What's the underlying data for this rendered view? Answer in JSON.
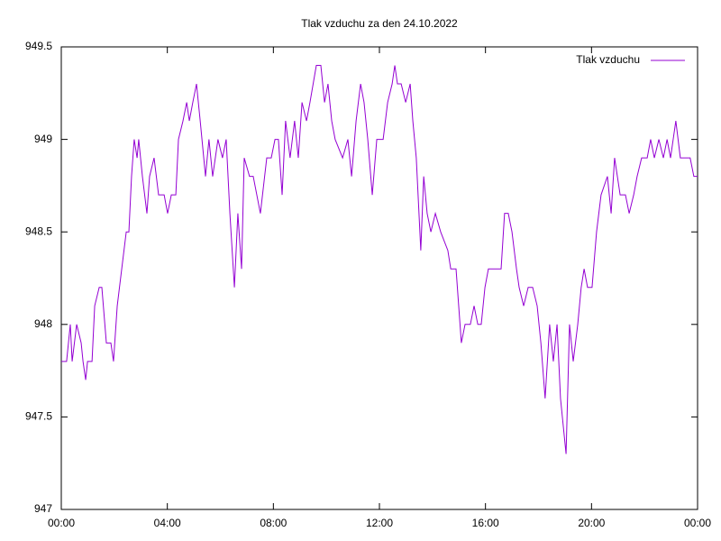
{
  "chart_data": {
    "type": "line",
    "title": "Tlak vzduchu za den 24.10.2022",
    "xlim": [
      0,
      24
    ],
    "xticks": [
      {
        "value": 0,
        "label": "00:00"
      },
      {
        "value": 4,
        "label": "04:00"
      },
      {
        "value": 8,
        "label": "08:00"
      },
      {
        "value": 12,
        "label": "12:00"
      },
      {
        "value": 16,
        "label": "16:00"
      },
      {
        "value": 20,
        "label": "20:00"
      },
      {
        "value": 24,
        "label": "00:00"
      }
    ],
    "ylim": [
      947,
      949.5
    ],
    "yticks": [
      947,
      {
        "value": 947.5,
        "label": "947.5"
      },
      948,
      {
        "value": 948.5,
        "label": "948.5"
      },
      949,
      {
        "value": 949.5,
        "label": "949.5"
      }
    ],
    "grid": false,
    "legend": "top-right",
    "x": [
      0,
      0.2,
      0.34,
      0.41,
      0.58,
      0.75,
      0.82,
      0.92,
      0.99,
      1.16,
      1.26,
      1.43,
      1.53,
      1.7,
      1.87,
      1.97,
      2.11,
      2.28,
      2.45,
      2.55,
      2.65,
      2.75,
      2.86,
      2.92,
      3.06,
      3.23,
      3.33,
      3.5,
      3.67,
      3.88,
      4.01,
      4.15,
      4.32,
      4.42,
      4.59,
      4.73,
      4.83,
      4.96,
      5.1,
      5.24,
      5.44,
      5.57,
      5.71,
      5.91,
      6.08,
      6.22,
      6.36,
      6.53,
      6.66,
      6.8,
      6.9,
      7.1,
      7.24,
      7.51,
      7.75,
      7.92,
      8.06,
      8.19,
      8.33,
      8.46,
      8.63,
      8.8,
      8.94,
      9.08,
      9.25,
      9.38,
      9.62,
      9.79,
      9.93,
      10.06,
      10.2,
      10.33,
      10.61,
      10.81,
      10.95,
      11.12,
      11.29,
      11.42,
      11.56,
      11.73,
      11.9,
      12.14,
      12.31,
      12.48,
      12.58,
      12.68,
      12.82,
      12.99,
      13.16,
      13.26,
      13.39,
      13.56,
      13.67,
      13.8,
      13.94,
      14.11,
      14.31,
      14.58,
      14.69,
      14.89,
      15.09,
      15.23,
      15.43,
      15.57,
      15.71,
      15.84,
      15.98,
      16.11,
      16.59,
      16.72,
      16.86,
      17.0,
      17.17,
      17.27,
      17.44,
      17.61,
      17.78,
      17.95,
      18.09,
      18.25,
      18.42,
      18.56,
      18.7,
      18.83,
      19.04,
      19.17,
      19.31,
      19.48,
      19.61,
      19.72,
      19.85,
      20.02,
      20.19,
      20.36,
      20.6,
      20.74,
      20.87,
      21.08,
      21.28,
      21.42,
      21.59,
      21.72,
      21.89,
      22.1,
      22.23,
      22.37,
      22.54,
      22.71,
      22.85,
      22.98,
      23.18,
      23.35,
      23.52,
      23.72,
      23.86,
      24.0
    ],
    "series": [
      {
        "name": "Tlak vzduchu",
        "color": "#9400d3",
        "values": [
          947.8,
          947.8,
          948.0,
          947.8,
          948.0,
          947.9,
          947.8,
          947.7,
          947.8,
          947.8,
          948.1,
          948.2,
          948.2,
          947.9,
          947.9,
          947.8,
          948.1,
          948.3,
          948.5,
          948.5,
          948.8,
          949.0,
          948.9,
          949.0,
          948.8,
          948.6,
          948.8,
          948.9,
          948.7,
          948.7,
          948.6,
          948.7,
          948.7,
          949.0,
          949.1,
          949.2,
          949.1,
          949.2,
          949.3,
          949.1,
          948.8,
          949.0,
          948.8,
          949.0,
          948.9,
          949.0,
          948.6,
          948.2,
          948.6,
          948.3,
          948.9,
          948.8,
          948.8,
          948.6,
          948.9,
          948.9,
          949.0,
          949.0,
          948.7,
          949.1,
          948.9,
          949.1,
          948.9,
          949.2,
          949.1,
          949.2,
          949.4,
          949.4,
          949.2,
          949.3,
          949.1,
          949.0,
          948.9,
          949.0,
          948.8,
          949.1,
          949.3,
          949.2,
          949.0,
          948.7,
          949.0,
          949.0,
          949.2,
          949.3,
          949.4,
          949.3,
          949.3,
          949.2,
          949.3,
          949.1,
          948.9,
          948.4,
          948.8,
          948.6,
          948.5,
          948.6,
          948.5,
          948.4,
          948.3,
          948.3,
          947.9,
          948.0,
          948.0,
          948.1,
          948.0,
          948.0,
          948.2,
          948.3,
          948.3,
          948.6,
          948.6,
          948.5,
          948.3,
          948.2,
          948.1,
          948.2,
          948.2,
          948.1,
          947.9,
          947.6,
          948.0,
          947.8,
          948.0,
          947.6,
          947.3,
          948.0,
          947.8,
          948.0,
          948.2,
          948.3,
          948.2,
          948.2,
          948.5,
          948.7,
          948.8,
          948.6,
          948.9,
          948.7,
          948.7,
          948.6,
          948.7,
          948.8,
          948.9,
          948.9,
          949.0,
          948.9,
          949.0,
          948.9,
          949.0,
          948.9,
          949.1,
          948.9,
          948.9,
          948.9,
          948.8,
          948.8
        ]
      }
    ]
  }
}
